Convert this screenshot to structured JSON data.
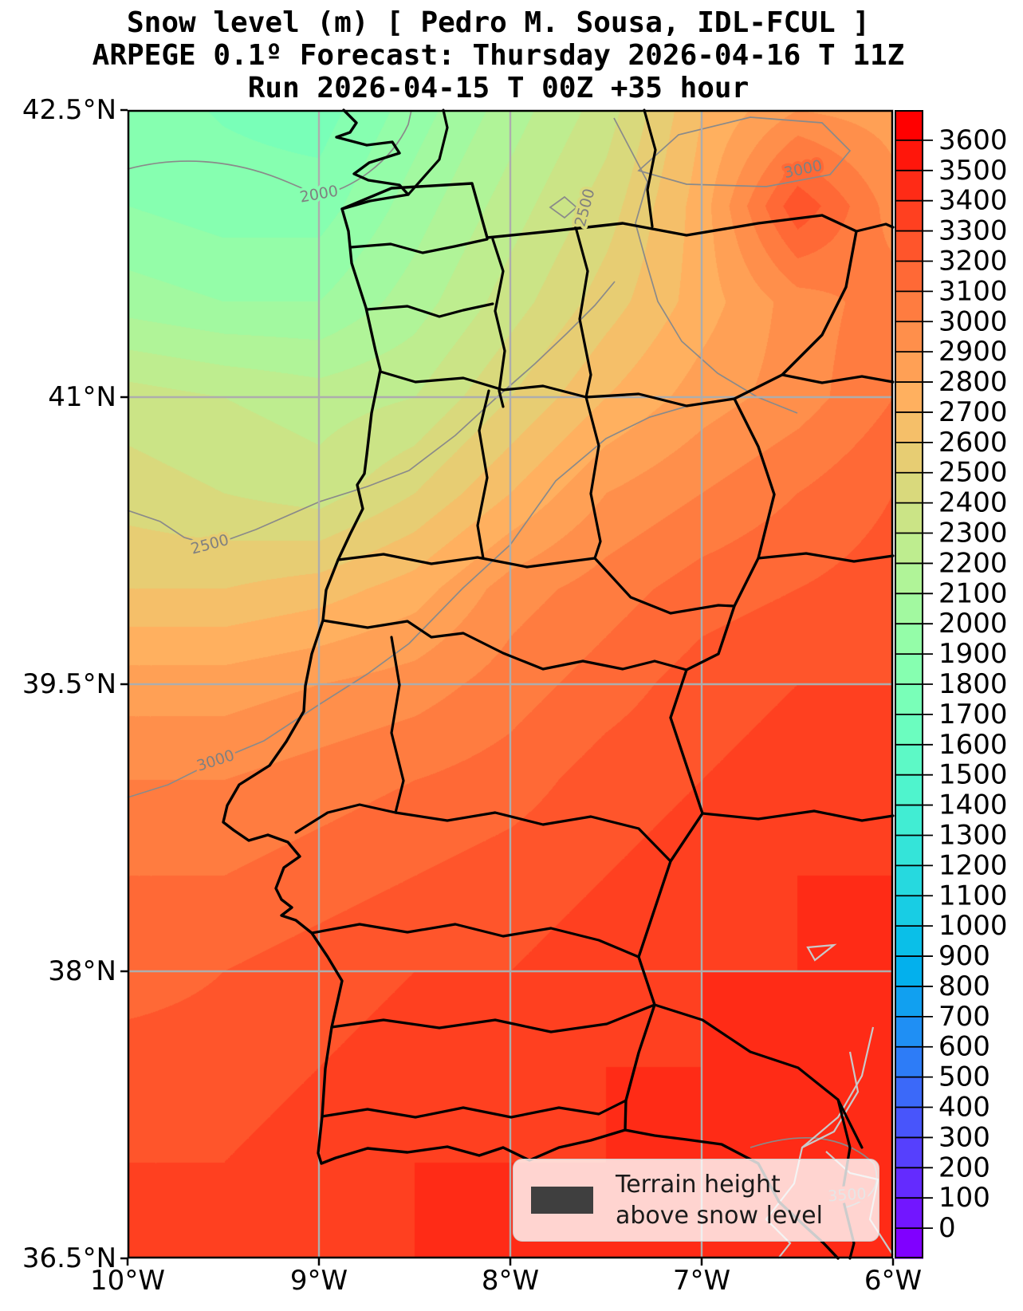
{
  "title": {
    "line1": "Snow level (m) [ Pedro M. Sousa, IDL-FCUL ]",
    "line2": "ARPEGE 0.1º Forecast: Thursday 2026-04-16 T 11Z",
    "line3": "Run 2026-04-15 T 00Z +35 hour"
  },
  "axes": {
    "lat_ticks": [
      {
        "label": "42.5°N",
        "lat": 42.5
      },
      {
        "label": "41°N",
        "lat": 41.0
      },
      {
        "label": "39.5°N",
        "lat": 39.5
      },
      {
        "label": "38°N",
        "lat": 38.0
      },
      {
        "label": "36.5°N",
        "lat": 36.5
      }
    ],
    "lon_ticks": [
      {
        "label": "10°W",
        "lon": -10
      },
      {
        "label": "9°W",
        "lon": -9
      },
      {
        "label": "8°W",
        "lon": -8
      },
      {
        "label": "7°W",
        "lon": -7
      },
      {
        "label": "6°W",
        "lon": -6
      }
    ]
  },
  "colorbar": {
    "ticks": [
      0,
      100,
      200,
      300,
      400,
      500,
      600,
      700,
      800,
      900,
      1000,
      1100,
      1200,
      1300,
      1400,
      1500,
      1600,
      1700,
      1800,
      1900,
      2000,
      2100,
      2200,
      2300,
      2400,
      2500,
      2600,
      2700,
      2800,
      2900,
      3000,
      3100,
      3200,
      3300,
      3400,
      3500,
      3600
    ],
    "range_min": -100,
    "range_max": 3700,
    "colormap": "rainbow",
    "units": "m"
  },
  "legend": {
    "line1": "Terrain height",
    "line2": "above snow level",
    "swatch_color": "#3f3f3f"
  },
  "contour_labels": [
    {
      "text": "2000",
      "lon": -9.0,
      "lat": 42.06,
      "rotation": -10
    },
    {
      "text": "2500",
      "lon": -7.61,
      "lat": 41.99,
      "rotation": -75
    },
    {
      "text": "3000",
      "lon": -6.47,
      "lat": 42.19,
      "rotation": -12
    },
    {
      "text": "2500",
      "lon": -9.57,
      "lat": 40.23,
      "rotation": -15
    },
    {
      "text": "3000",
      "lon": -9.54,
      "lat": 39.1,
      "rotation": -18
    },
    {
      "text": "3500",
      "lon": -6.24,
      "lat": 36.83,
      "rotation": -4
    }
  ],
  "chart_data": {
    "type": "heatmap",
    "title": "Snow level (m) [ Pedro M. Sousa, IDL-FCUL ]",
    "subtitle": "ARPEGE 0.1º Forecast: Thursday 2026-04-16 T 11Z",
    "run_info": "Run 2026-04-15 T 00Z +35 hour",
    "variable": "snow level",
    "units": "m",
    "colormap": "rainbow",
    "colorbar_range": [
      -100,
      3700
    ],
    "colorbar_tick_step": 100,
    "extent": {
      "lon": [
        -10,
        -6
      ],
      "lat": [
        36.5,
        42.5
      ]
    },
    "grid_lon": [
      -10,
      -9.5,
      -9,
      -8.5,
      -8,
      -7.5,
      -7,
      -6.5,
      -6
    ],
    "grid_lat": [
      42.5,
      42.0,
      41.5,
      41.0,
      40.5,
      40.0,
      39.5,
      39.0,
      38.5,
      38.0,
      37.5,
      37.0,
      36.5
    ],
    "snow_level_m": [
      [
        1850,
        1790,
        1750,
        1950,
        2150,
        2350,
        2700,
        2900,
        2850
      ],
      [
        1900,
        1850,
        1850,
        2050,
        2250,
        2450,
        2750,
        3280,
        2950
      ],
      [
        2050,
        2000,
        2000,
        2150,
        2350,
        2550,
        2750,
        2950,
        3050
      ],
      [
        2350,
        2300,
        2250,
        2300,
        2500,
        2700,
        2850,
        2950,
        3100
      ],
      [
        2450,
        2400,
        2350,
        2500,
        2700,
        2900,
        3000,
        3100,
        3200
      ],
      [
        2600,
        2600,
        2650,
        2750,
        2950,
        3050,
        3150,
        3200,
        3250
      ],
      [
        2850,
        2850,
        2900,
        2950,
        3050,
        3150,
        3250,
        3300,
        3300
      ],
      [
        3000,
        3000,
        3050,
        3100,
        3150,
        3250,
        3300,
        3350,
        3350
      ],
      [
        3100,
        3100,
        3150,
        3200,
        3250,
        3300,
        3350,
        3400,
        3400
      ],
      [
        3150,
        3200,
        3250,
        3300,
        3300,
        3350,
        3400,
        3400,
        3450
      ],
      [
        3250,
        3250,
        3300,
        3350,
        3350,
        3400,
        3400,
        3450,
        3450
      ],
      [
        3300,
        3300,
        3350,
        3400,
        3400,
        3400,
        3450,
        3450,
        3500
      ],
      [
        3300,
        3350,
        3400,
        3400,
        3400,
        3450,
        3450,
        3500,
        3500
      ]
    ],
    "contour_line_values": [
      2000,
      2500,
      3000,
      3500
    ],
    "legend_text": "Terrain height above snow level",
    "gridlines": {
      "lon_step_deg": 1,
      "lat_step_deg": 1.5,
      "visible": true
    }
  }
}
